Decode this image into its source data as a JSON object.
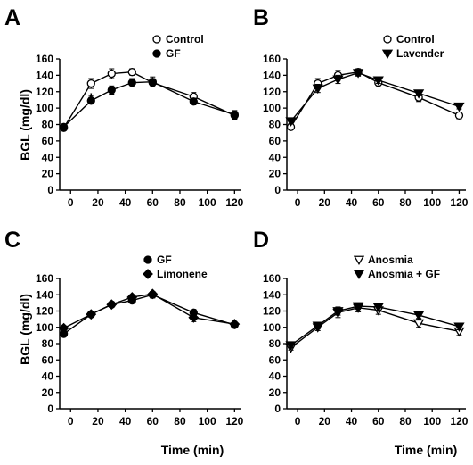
{
  "figure": {
    "ylabel": "BGL (mg/dl)",
    "xlabel": "Time (min)"
  },
  "chart_data": [
    {
      "panel": "A",
      "type": "line",
      "ylabel": "BGL (mg/dl)",
      "xlabel": "",
      "xlim": [
        -8,
        125
      ],
      "ylim": [
        0,
        160
      ],
      "xticks": [
        0,
        20,
        40,
        60,
        80,
        100,
        120
      ],
      "yticks": [
        0,
        20,
        40,
        60,
        80,
        100,
        120,
        140,
        160
      ],
      "legend_position": "top-right",
      "annotations": [
        {
          "text": "*",
          "x": 15,
          "y": 117
        }
      ],
      "series": [
        {
          "name": "Control",
          "marker": "circle-open",
          "x": [
            -5,
            15,
            30,
            45,
            60,
            90,
            120
          ],
          "y": [
            76,
            130,
            142,
            144,
            131,
            114,
            91
          ],
          "err": [
            3,
            6,
            6,
            4,
            5,
            5,
            5
          ]
        },
        {
          "name": "GF",
          "marker": "circle-filled",
          "x": [
            -5,
            15,
            30,
            45,
            60,
            90,
            120
          ],
          "y": [
            77,
            109,
            122,
            131,
            132,
            108,
            92
          ],
          "err": [
            3,
            4,
            5,
            5,
            6,
            4,
            5
          ]
        }
      ]
    },
    {
      "panel": "B",
      "type": "line",
      "ylabel": "",
      "xlabel": "",
      "xlim": [
        -8,
        125
      ],
      "ylim": [
        0,
        160
      ],
      "xticks": [
        0,
        20,
        40,
        60,
        80,
        100,
        120
      ],
      "yticks": [
        0,
        20,
        40,
        60,
        80,
        100,
        120,
        140,
        160
      ],
      "legend_position": "top-right",
      "series": [
        {
          "name": "Control",
          "marker": "circle-open",
          "x": [
            -5,
            15,
            30,
            45,
            60,
            90,
            120
          ],
          "y": [
            77,
            130,
            140,
            144,
            131,
            113,
            91
          ],
          "err": [
            3,
            6,
            6,
            4,
            5,
            5,
            4
          ]
        },
        {
          "name": "Lavender",
          "marker": "triangle-down-filled",
          "x": [
            -5,
            15,
            30,
            45,
            60,
            90,
            120
          ],
          "y": [
            84,
            124,
            135,
            143,
            134,
            118,
            102
          ],
          "err": [
            3,
            5,
            5,
            4,
            4,
            3,
            3
          ]
        }
      ]
    },
    {
      "panel": "C",
      "type": "line",
      "ylabel": "BGL (mg/dl)",
      "xlabel": "Time (min)",
      "xlim": [
        -8,
        125
      ],
      "ylim": [
        0,
        160
      ],
      "xticks": [
        0,
        20,
        40,
        60,
        80,
        100,
        120
      ],
      "yticks": [
        0,
        20,
        40,
        60,
        80,
        100,
        120,
        140,
        160
      ],
      "legend_position": "top-right",
      "series": [
        {
          "name": "GF",
          "marker": "circle-filled",
          "x": [
            -5,
            15,
            30,
            45,
            60,
            90,
            120
          ],
          "y": [
            92,
            116,
            128,
            133,
            140,
            118,
            103
          ],
          "err": [
            3,
            3,
            3,
            3,
            4,
            4,
            3
          ]
        },
        {
          "name": "Limonene",
          "marker": "diamond-filled",
          "x": [
            -5,
            15,
            30,
            45,
            60,
            90,
            120
          ],
          "y": [
            99,
            116,
            128,
            137,
            141,
            112,
            104
          ],
          "err": [
            3,
            3,
            3,
            3,
            3,
            5,
            3
          ]
        }
      ]
    },
    {
      "panel": "D",
      "type": "line",
      "ylabel": "",
      "xlabel": "Time (min)",
      "xlim": [
        -8,
        125
      ],
      "ylim": [
        0,
        160
      ],
      "xticks": [
        0,
        20,
        40,
        60,
        80,
        100,
        120
      ],
      "yticks": [
        0,
        20,
        40,
        60,
        80,
        100,
        120,
        140,
        160
      ],
      "legend_position": "top-right",
      "series": [
        {
          "name": "Anosmia",
          "marker": "triangle-down-open",
          "x": [
            -5,
            15,
            30,
            45,
            60,
            90,
            120
          ],
          "y": [
            75,
            100,
            118,
            124,
            121,
            105,
            95
          ],
          "err": [
            3,
            4,
            6,
            5,
            5,
            5,
            5
          ]
        },
        {
          "name": "Anosmia + GF",
          "marker": "triangle-down-filled",
          "x": [
            -5,
            15,
            30,
            45,
            60,
            90,
            120
          ],
          "y": [
            78,
            102,
            120,
            126,
            125,
            115,
            101
          ],
          "err": [
            3,
            4,
            5,
            4,
            4,
            4,
            4
          ]
        }
      ]
    }
  ]
}
